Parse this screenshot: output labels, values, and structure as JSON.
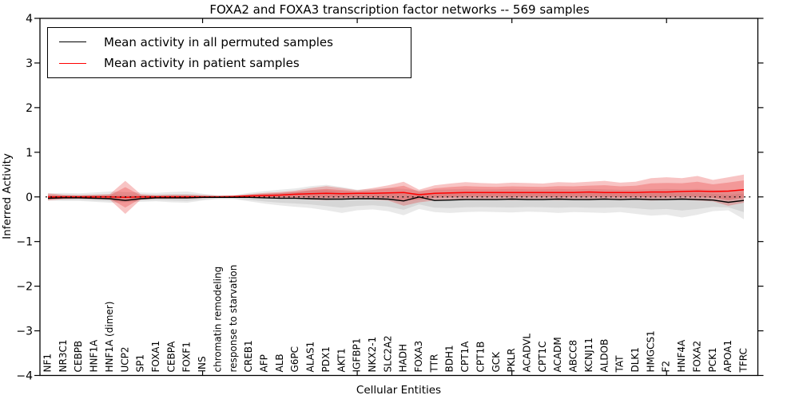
{
  "title": "FOXA2 and FOXA3 transcription factor networks -- 569 samples",
  "legend": {
    "items": [
      {
        "label": "Mean activity in all permuted samples",
        "color": "#000000"
      },
      {
        "label": "Mean activity in patient samples",
        "color": "#ff0000"
      }
    ]
  },
  "axes": {
    "y_label": "Inferred Activity",
    "x_label": "Cellular Entities",
    "y_tick_labels": [
      "4",
      "3",
      "2",
      "1",
      "0",
      "−1",
      "−2",
      "−3",
      "−4"
    ],
    "y_tick_values": [
      4,
      3,
      2,
      1,
      0,
      -1,
      -2,
      -3,
      -4
    ],
    "x_major_tick_positions": [
      10,
      20,
      30,
      40
    ]
  },
  "chart_data": {
    "type": "line",
    "title": "FOXA2 and FOXA3 transcription factor networks -- 569 samples",
    "xlabel": "Cellular Entities",
    "ylabel": "Inferred Activity",
    "ylim": [
      -4,
      4
    ],
    "grid": false,
    "legend_position": "upper left",
    "zero_line": true,
    "categories": [
      "NF1",
      "NR3C1",
      "CEBPB",
      "HNF1A",
      "HNF1A (dimer)",
      "UCP2",
      "SP1",
      "FOXA1",
      "CEBPA",
      "FOXF1",
      "INS",
      "chromatin remodeling",
      "response to starvation",
      "CREB1",
      "AFP",
      "ALB",
      "G6PC",
      "ALAS1",
      "PDX1",
      "AKT1",
      "IGFBP1",
      "NKX2-1",
      "SLC2A2",
      "HADH",
      "FOXA3",
      "TTR",
      "BDH1",
      "CPT1A",
      "CPT1B",
      "GCK",
      "PKLR",
      "ACADVL",
      "CPT1C",
      "ACADM",
      "ABCC8",
      "KCNJ11",
      "ALDOB",
      "TAT",
      "DLK1",
      "HMGCS1",
      "F2",
      "HNF4A",
      "FOXA2",
      "PCK1",
      "APOA1",
      "TFRC"
    ],
    "series": [
      {
        "name": "Mean activity in all permuted samples",
        "key": "perm_mean",
        "color": "#000000",
        "width": 1.4,
        "values": [
          -0.03,
          -0.02,
          -0.02,
          -0.03,
          -0.04,
          -0.08,
          -0.04,
          -0.02,
          -0.02,
          -0.02,
          -0.01,
          -0.01,
          -0.01,
          -0.01,
          -0.02,
          -0.03,
          -0.03,
          -0.04,
          -0.05,
          -0.05,
          -0.04,
          -0.04,
          -0.05,
          -0.09,
          0.0,
          -0.08,
          -0.07,
          -0.06,
          -0.06,
          -0.06,
          -0.05,
          -0.06,
          -0.06,
          -0.05,
          -0.06,
          -0.06,
          -0.05,
          -0.06,
          -0.05,
          -0.06,
          -0.06,
          -0.05,
          -0.06,
          -0.07,
          -0.12,
          -0.08
        ]
      },
      {
        "name": "Mean activity in patient samples",
        "key": "pat_mean",
        "color": "#ff0000",
        "width": 1.5,
        "values": [
          0,
          0,
          0,
          0,
          0,
          -0.01,
          0,
          0,
          0,
          0,
          0,
          0,
          0.01,
          0.02,
          0.03,
          0.04,
          0.06,
          0.07,
          0.08,
          0.07,
          0.08,
          0.08,
          0.09,
          0.1,
          0.05,
          0.08,
          0.09,
          0.1,
          0.1,
          0.1,
          0.1,
          0.1,
          0.1,
          0.1,
          0.1,
          0.11,
          0.1,
          0.1,
          0.1,
          0.11,
          0.11,
          0.12,
          0.13,
          0.12,
          0.13,
          0.16
        ]
      }
    ],
    "bands": [
      {
        "name": "permuted-range",
        "mean_key": "perm_mean",
        "color": "#7a7a7a",
        "opacity": 0.17,
        "high": [
          0.08,
          0.09,
          0.08,
          0.1,
          0.12,
          0.11,
          0.1,
          0.09,
          0.11,
          0.12,
          0.07,
          0.04,
          0.04,
          0.09,
          0.13,
          0.16,
          0.19,
          0.24,
          0.27,
          0.22,
          0.16,
          0.18,
          0.2,
          0.18,
          0.14,
          0.16,
          0.17,
          0.18,
          0.17,
          0.17,
          0.18,
          0.17,
          0.17,
          0.18,
          0.17,
          0.18,
          0.17,
          0.16,
          0.16,
          0.17,
          0.18,
          0.17,
          0.18,
          0.16,
          0.15,
          0.17
        ],
        "low": [
          -0.08,
          -0.09,
          -0.09,
          -0.11,
          -0.13,
          -0.12,
          -0.11,
          -0.1,
          -0.12,
          -0.13,
          -0.08,
          -0.05,
          -0.05,
          -0.1,
          -0.15,
          -0.19,
          -0.22,
          -0.25,
          -0.3,
          -0.36,
          -0.3,
          -0.28,
          -0.32,
          -0.41,
          -0.27,
          -0.34,
          -0.36,
          -0.34,
          -0.33,
          -0.34,
          -0.35,
          -0.33,
          -0.34,
          -0.36,
          -0.34,
          -0.35,
          -0.36,
          -0.34,
          -0.38,
          -0.42,
          -0.4,
          -0.46,
          -0.4,
          -0.32,
          -0.3,
          -0.5
        ]
      },
      {
        "name": "patient-range",
        "mean_key": "pat_mean",
        "color": "#e41a1c",
        "opacity": 0.26,
        "high": [
          0.08,
          0.05,
          0.04,
          0.05,
          0.06,
          0.36,
          0.06,
          0.04,
          0.05,
          0.05,
          0.04,
          0.03,
          0.03,
          0.06,
          0.09,
          0.11,
          0.14,
          0.2,
          0.24,
          0.2,
          0.15,
          0.2,
          0.26,
          0.34,
          0.16,
          0.26,
          0.3,
          0.33,
          0.31,
          0.3,
          0.32,
          0.31,
          0.3,
          0.33,
          0.32,
          0.34,
          0.36,
          0.32,
          0.34,
          0.42,
          0.44,
          0.42,
          0.47,
          0.38,
          0.44,
          0.5
        ],
        "low": [
          -0.08,
          -0.05,
          -0.04,
          -0.05,
          -0.06,
          -0.38,
          -0.06,
          -0.04,
          -0.04,
          -0.04,
          -0.03,
          -0.02,
          -0.02,
          -0.02,
          -0.03,
          -0.03,
          -0.04,
          -0.06,
          -0.07,
          -0.06,
          -0.05,
          -0.06,
          -0.08,
          -0.2,
          -0.12,
          -0.08,
          -0.07,
          -0.06,
          -0.06,
          -0.06,
          -0.07,
          -0.06,
          -0.06,
          -0.07,
          -0.06,
          -0.07,
          -0.06,
          -0.07,
          -0.06,
          -0.08,
          -0.07,
          -0.06,
          -0.08,
          -0.1,
          -0.2,
          -0.13
        ]
      }
    ],
    "inner_band_factor": 0.62
  }
}
